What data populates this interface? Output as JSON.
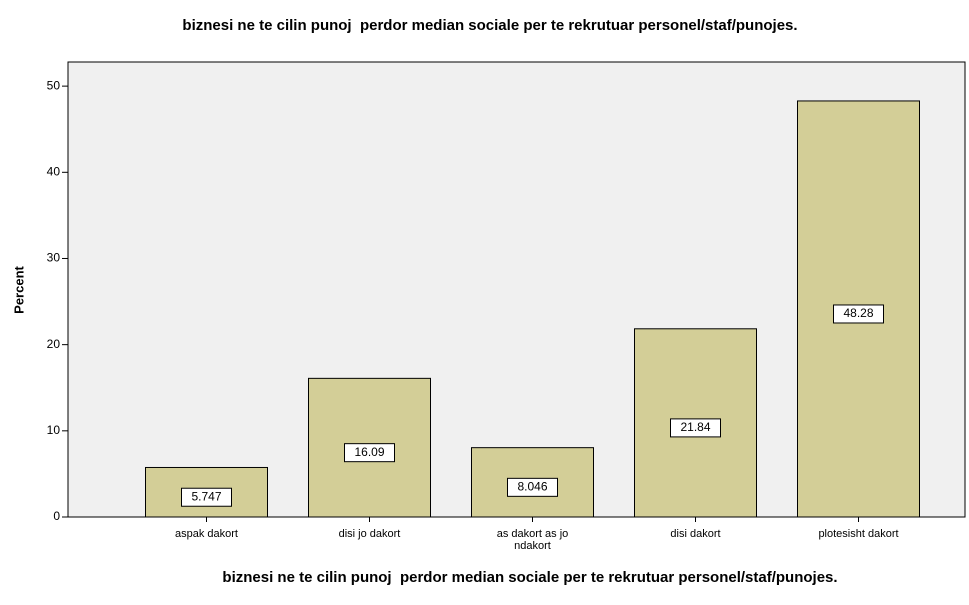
{
  "chart_data": {
    "type": "bar",
    "title": "biznesi ne te cilin punoj  perdor median sociale per te rekrutuar personel/staf/punojes.",
    "x_label": "biznesi ne te cilin punoj  perdor median sociale per te rekrutuar personel/staf/punojes.",
    "y_label": "Percent",
    "categories": [
      "aspak dakort",
      "disi jo dakort",
      "as dakort as jo ndakort",
      "disi dakort",
      "plotesisht dakort"
    ],
    "values": [
      5.747,
      16.09,
      8.046,
      21.84,
      48.28
    ],
    "color": "#d3ce97",
    "ylim": [
      0,
      52.8
    ],
    "yticks": [
      0,
      10,
      20,
      30,
      40,
      50
    ],
    "grid": false
  }
}
